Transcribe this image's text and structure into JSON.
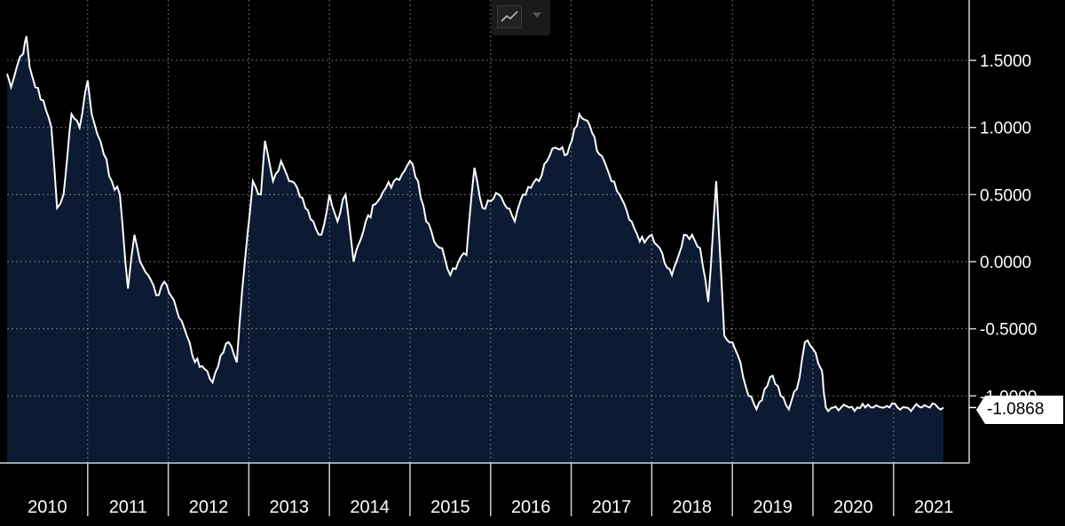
{
  "chart_data": {
    "type": "area",
    "title": "",
    "xlabel": "",
    "ylabel": "",
    "x_tick_labels": [
      "2010",
      "2011",
      "2012",
      "2013",
      "2014",
      "2015",
      "2016",
      "2017",
      "2018",
      "2019",
      "2020",
      "2021"
    ],
    "y_tick_labels": [
      "1.5000",
      "1.0000",
      "0.5000",
      "0.0000",
      "-0.5000",
      "-1.0000"
    ],
    "y_ticks": [
      1.5,
      1.0,
      0.5,
      0.0,
      -0.5,
      -1.0
    ],
    "ylim": [
      -1.5,
      1.95
    ],
    "xlim": [
      2010.0,
      2021.72
    ],
    "grid": true,
    "last_value": -1.0868,
    "last_value_label": "-1.0868",
    "series": [
      {
        "x": [
          2010.0,
          2010.05,
          2010.12,
          2010.2,
          2010.24,
          2010.28,
          2010.35,
          2010.45,
          2010.55,
          2010.62,
          2010.7,
          2010.75,
          2010.8,
          2010.9,
          2011.0,
          2011.05,
          2011.12,
          2011.2,
          2011.3,
          2011.4,
          2011.5,
          2011.58,
          2011.65,
          2011.75,
          2011.85,
          2011.95,
          2012.1,
          2012.2,
          2012.3,
          2012.45,
          2012.55,
          2012.65,
          2012.75,
          2012.85,
          2012.95,
          2013.05,
          2013.15,
          2013.2,
          2013.3,
          2013.4,
          2013.5,
          2013.6,
          2013.7,
          2013.8,
          2013.9,
          2014.0,
          2014.1,
          2014.2,
          2014.3,
          2014.45,
          2014.6,
          2014.7,
          2014.8,
          2014.9,
          2015.0,
          2015.1,
          2015.2,
          2015.3,
          2015.4,
          2015.5,
          2015.6,
          2015.7,
          2015.8,
          2015.9,
          2016.0,
          2016.1,
          2016.2,
          2016.3,
          2016.4,
          2016.5,
          2016.6,
          2016.7,
          2016.8,
          2016.95,
          2017.1,
          2017.2,
          2017.35,
          2017.5,
          2017.6,
          2017.75,
          2017.85,
          2018.0,
          2018.1,
          2018.25,
          2018.4,
          2018.5,
          2018.6,
          2018.7,
          2018.8,
          2018.9,
          2019.0,
          2019.1,
          2019.2,
          2019.3,
          2019.4,
          2019.5,
          2019.6,
          2019.7,
          2019.8,
          2019.9,
          2020.0,
          2020.1,
          2020.12,
          2020.14,
          2020.16,
          2020.25,
          2020.35,
          2020.45,
          2020.55,
          2020.65,
          2020.75,
          2020.85,
          2020.95,
          2021.05,
          2021.15,
          2021.25,
          2021.35,
          2021.45,
          2021.55,
          2021.62
        ],
        "y": [
          1.4,
          1.3,
          1.45,
          1.55,
          1.68,
          1.45,
          1.3,
          1.2,
          1.0,
          0.4,
          0.5,
          0.8,
          1.1,
          1.0,
          1.35,
          1.1,
          0.95,
          0.8,
          0.6,
          0.5,
          -0.2,
          0.2,
          0.0,
          -0.1,
          -0.25,
          -0.15,
          -0.35,
          -0.5,
          -0.7,
          -0.8,
          -0.9,
          -0.7,
          -0.6,
          -0.75,
          0.0,
          0.6,
          0.5,
          0.9,
          0.6,
          0.75,
          0.6,
          0.55,
          0.4,
          0.3,
          0.2,
          0.5,
          0.3,
          0.5,
          0.0,
          0.3,
          0.45,
          0.55,
          0.6,
          0.65,
          0.75,
          0.6,
          0.3,
          0.15,
          0.1,
          -0.1,
          0.0,
          0.05,
          0.7,
          0.4,
          0.45,
          0.5,
          0.4,
          0.3,
          0.5,
          0.55,
          0.6,
          0.75,
          0.85,
          0.8,
          1.1,
          1.05,
          0.8,
          0.6,
          0.5,
          0.3,
          0.15,
          0.2,
          0.1,
          -0.1,
          0.2,
          0.2,
          0.1,
          -0.3,
          0.6,
          -0.55,
          -0.6,
          -0.75,
          -1.0,
          -1.1,
          -0.95,
          -0.85,
          -1.0,
          -1.1,
          -0.95,
          -0.6,
          -0.65,
          -0.8,
          -0.85,
          -1.0,
          -1.0868,
          -1.0868,
          -1.0868,
          -1.0868,
          -1.0868,
          -1.0868,
          -1.0868,
          -1.0868,
          -1.0868,
          -1.0868,
          -1.0868,
          -1.0868,
          -1.0868,
          -1.0868,
          -1.0868,
          -1.0868
        ]
      }
    ],
    "colors": {
      "line": "#ffffff",
      "fill": "#0c1b33",
      "grid": "#9a9a9a",
      "background": "#000000"
    }
  },
  "toolbar": {
    "chart_type_icon": "line-chart-icon",
    "dropdown_icon": "caret-down-icon"
  }
}
